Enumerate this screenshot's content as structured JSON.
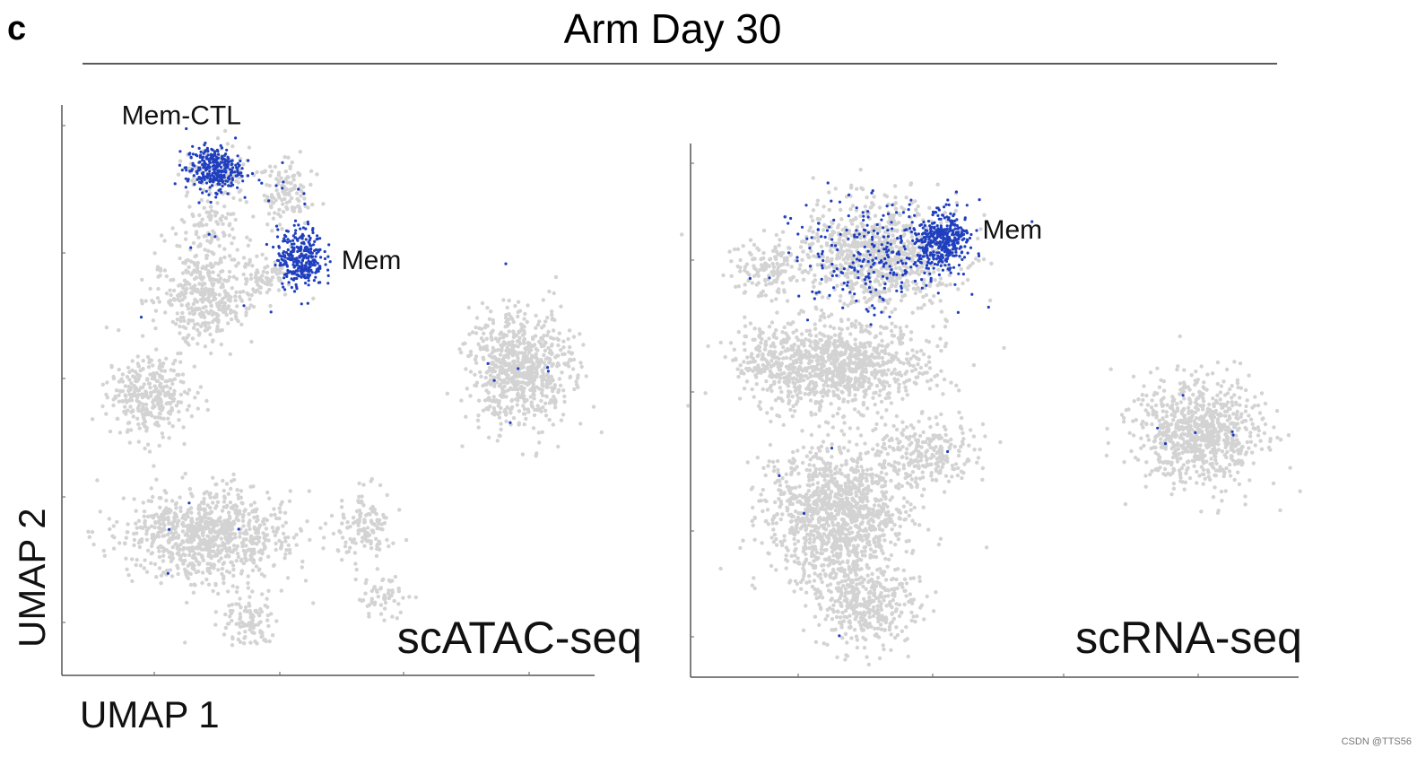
{
  "figure": {
    "panel_letter": "c",
    "title": "Arm Day 30",
    "watermark": "CSDN @TTS56"
  },
  "colors": {
    "background_cells": "#d3d3d3",
    "highlighted_cells": "#1f3fbf",
    "axis": "#555555"
  },
  "chart_data": [
    {
      "type": "scatter",
      "title": "scATAC-seq",
      "xlabel": "UMAP 1",
      "ylabel": "UMAP 2",
      "xlim": [
        0,
        100
      ],
      "ylim": [
        0,
        100
      ],
      "grid": false,
      "legend": "none",
      "series": [
        {
          "name": "",
          "role": "background",
          "color": "#d3d3d3"
        },
        {
          "name": "",
          "role": "highlight",
          "color": "#1f3fbf"
        }
      ],
      "clusters": [
        {
          "cx": 27,
          "cy": 88,
          "rx": 7,
          "ry": 5,
          "density": 0.6,
          "highlight": 0.03
        },
        {
          "cx": 40,
          "cy": 85,
          "rx": 5,
          "ry": 6,
          "density": 0.7,
          "highlight": 0.04
        },
        {
          "cx": 25,
          "cy": 78,
          "rx": 6,
          "ry": 5,
          "density": 0.5,
          "highlight": 0.02
        },
        {
          "cx": 24,
          "cy": 66,
          "rx": 10,
          "ry": 8,
          "density": 0.8,
          "highlight": 0.01
        },
        {
          "cx": 37,
          "cy": 70,
          "rx": 6,
          "ry": 4,
          "density": 0.5,
          "highlight": 0.01
        },
        {
          "cx": 13,
          "cy": 48,
          "rx": 8,
          "ry": 7,
          "density": 0.9,
          "highlight": 0.0
        },
        {
          "cx": 86,
          "cy": 53,
          "rx": 10,
          "ry": 10,
          "density": 1.2,
          "highlight": 0.005
        },
        {
          "cx": 25,
          "cy": 23,
          "rx": 16,
          "ry": 8,
          "density": 1.1,
          "highlight": 0.005
        },
        {
          "cx": 33,
          "cy": 8,
          "rx": 5,
          "ry": 5,
          "density": 0.7,
          "highlight": 0.0
        },
        {
          "cx": 56,
          "cy": 25,
          "rx": 6,
          "ry": 6,
          "density": 0.6,
          "highlight": 0.0
        },
        {
          "cx": 59,
          "cy": 12,
          "rx": 5,
          "ry": 4,
          "density": 0.5,
          "highlight": 0.0
        }
      ],
      "highlight_clusters": [
        {
          "cx": 26,
          "cy": 89,
          "rx": 6,
          "ry": 4.5,
          "density": 1.6
        },
        {
          "cx": 43,
          "cy": 73,
          "rx": 5,
          "ry": 6,
          "density": 1.5
        }
      ],
      "annotations": [
        {
          "text": "Mem-CTL",
          "x": 8,
          "y": 97
        },
        {
          "text": "Mem",
          "x": 51,
          "y": 71
        }
      ]
    },
    {
      "type": "scatter",
      "title": "scRNA-seq",
      "xlabel": "",
      "ylabel": "",
      "xlim": [
        0,
        100
      ],
      "ylim": [
        0,
        100
      ],
      "grid": false,
      "legend": "none",
      "series": [
        {
          "name": "",
          "role": "background",
          "color": "#d3d3d3"
        },
        {
          "name": "",
          "role": "highlight",
          "color": "#1f3fbf"
        }
      ],
      "clusters": [
        {
          "cx": 29,
          "cy": 81,
          "rx": 14,
          "ry": 10,
          "density": 1.3,
          "highlight": 0.25
        },
        {
          "cx": 10,
          "cy": 78,
          "rx": 6,
          "ry": 5,
          "density": 0.7,
          "highlight": 0.01
        },
        {
          "cx": 22,
          "cy": 59,
          "rx": 15,
          "ry": 9,
          "density": 1.2,
          "highlight": 0.0
        },
        {
          "cx": 10,
          "cy": 62,
          "rx": 5,
          "ry": 5,
          "density": 0.5,
          "highlight": 0.0
        },
        {
          "cx": 38,
          "cy": 42,
          "rx": 8,
          "ry": 6,
          "density": 0.8,
          "highlight": 0.005
        },
        {
          "cx": 22,
          "cy": 30,
          "rx": 12,
          "ry": 14,
          "density": 1.2,
          "highlight": 0.005
        },
        {
          "cx": 27,
          "cy": 12,
          "rx": 8,
          "ry": 8,
          "density": 0.9,
          "highlight": 0.0
        },
        {
          "cx": 84,
          "cy": 46,
          "rx": 11,
          "ry": 10,
          "density": 1.2,
          "highlight": 0.003
        }
      ],
      "highlight_clusters": [
        {
          "cx": 40,
          "cy": 84,
          "rx": 5,
          "ry": 6,
          "density": 1.7
        }
      ],
      "annotations": [
        {
          "text": "Mem",
          "x": 47,
          "y": 84
        }
      ]
    }
  ]
}
